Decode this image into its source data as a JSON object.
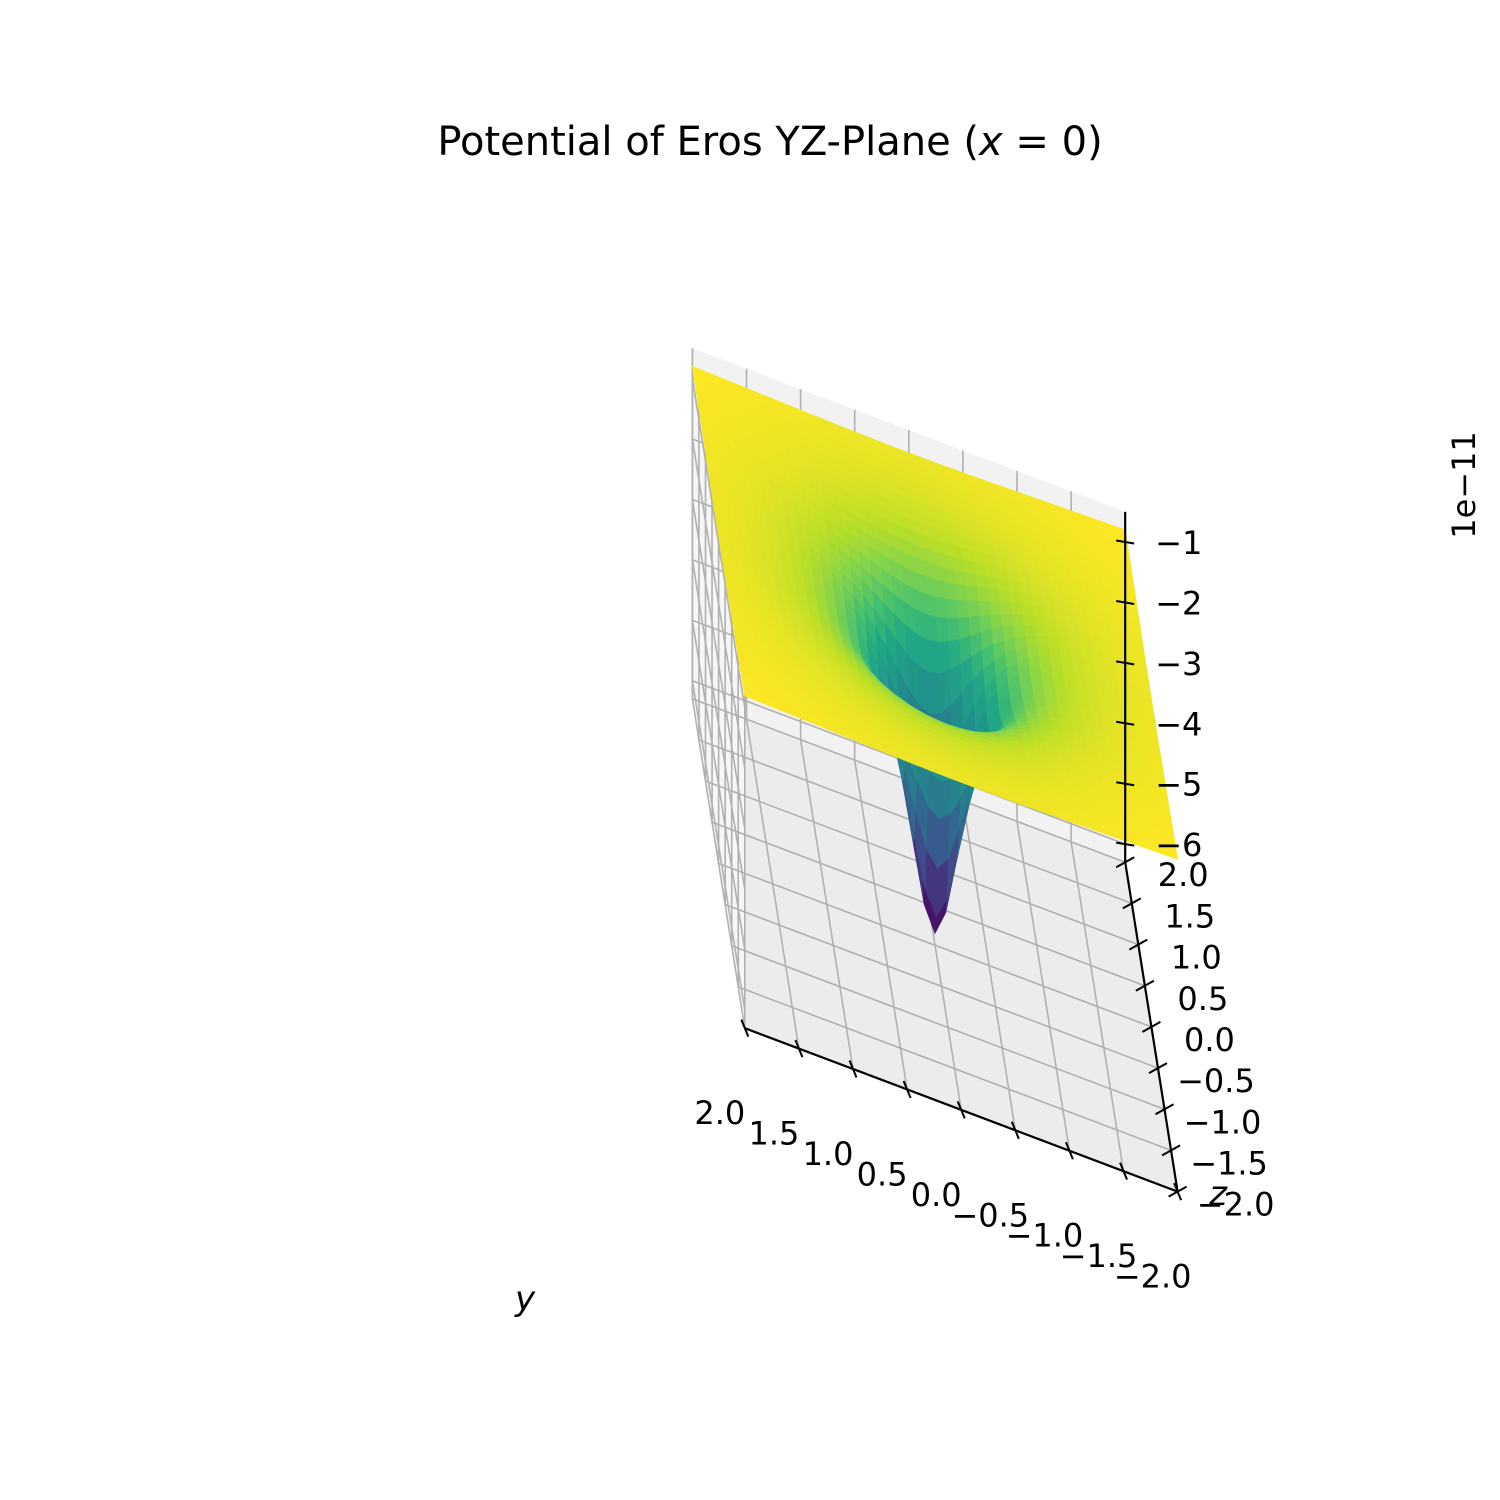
{
  "chart_data": {
    "type": "surface",
    "title_text": "Potential of Eros YZ-Plane (",
    "title_var": "x",
    "title_eq": " = 0)",
    "xlabel": "y",
    "ylabel": "z",
    "zlabel": "",
    "offset_text": "1e−11",
    "x_range": [
      -2.0,
      2.0
    ],
    "y_range": [
      -2.0,
      2.0
    ],
    "z_range": [
      -6.3,
      -0.5
    ],
    "x_ticks": [
      "−2.0",
      "−1.5",
      "−1.0",
      "−0.5",
      "0.0",
      "0.5",
      "1.0",
      "1.5",
      "2.0"
    ],
    "y_ticks": [
      "−2.0",
      "−1.5",
      "−1.0",
      "−0.5",
      "0.0",
      "0.5",
      "1.0",
      "1.5",
      "2.0"
    ],
    "z_ticks": [
      "−1",
      "−2",
      "−3",
      "−4",
      "−5",
      "−6"
    ],
    "z_min_value": -6.1,
    "z_edge_value": -0.8,
    "colormap": "viridis",
    "grid": true,
    "pane_color": "#f2f2f2"
  }
}
